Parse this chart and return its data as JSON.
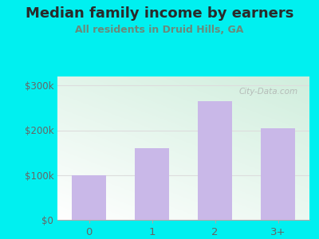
{
  "categories": [
    "0",
    "1",
    "2",
    "3+"
  ],
  "values": [
    100000,
    160000,
    265000,
    205000
  ],
  "bar_color": "#c9b8e8",
  "title": "Median family income by earners",
  "subtitle": "All residents in Druid Hills, GA",
  "title_color": "#2a2a2a",
  "subtitle_color": "#6a8a7a",
  "bg_color": "#00f0f0",
  "plot_bg_topleft": "#d0eedd",
  "plot_bg_white": "#ffffff",
  "yticks": [
    0,
    100000,
    200000,
    300000
  ],
  "ytick_labels": [
    "$0",
    "$100k",
    "$200k",
    "$300k"
  ],
  "ylim": [
    0,
    320000
  ],
  "tick_color": "#666666",
  "grid_color": "#dddddd",
  "watermark": "City-Data.com",
  "title_fontsize": 13,
  "subtitle_fontsize": 9
}
